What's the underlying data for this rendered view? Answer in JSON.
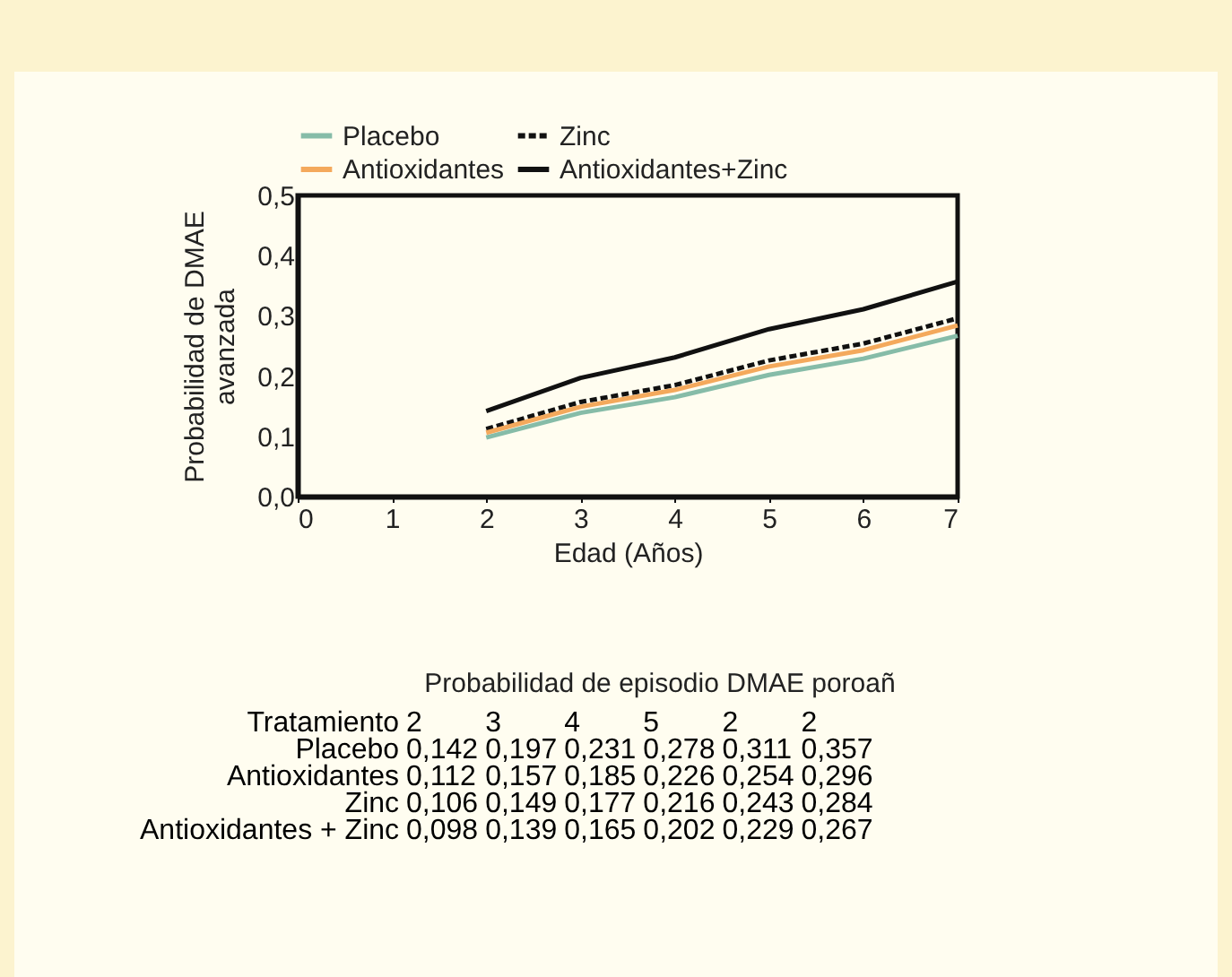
{
  "chart_data": {
    "type": "line",
    "xlabel": "Edad (Años)",
    "ylabel": "Probabilidad de DMAE\navanzada",
    "x": [
      2,
      3,
      4,
      5,
      6,
      7
    ],
    "series": [
      {
        "name": "Placebo",
        "color": "#86bca8",
        "line_style": "solid",
        "values": [
          0.098,
          0.139,
          0.165,
          0.202,
          0.229,
          0.267
        ]
      },
      {
        "name": "Zinc",
        "color": "#111111",
        "line_style": "dashed",
        "values": [
          0.112,
          0.157,
          0.185,
          0.226,
          0.254,
          0.296
        ]
      },
      {
        "name": "Antioxidantes",
        "color": "#f4a95c",
        "line_style": "solid",
        "values": [
          0.106,
          0.149,
          0.177,
          0.216,
          0.243,
          0.284
        ]
      },
      {
        "name": "Antioxidantes+Zinc",
        "color": "#111111",
        "line_style": "solid",
        "values": [
          0.142,
          0.197,
          0.231,
          0.278,
          0.311,
          0.357
        ]
      }
    ],
    "xlim": [
      0,
      7
    ],
    "xticks": [
      0,
      1,
      2,
      3,
      4,
      5,
      6,
      7
    ],
    "ylim": [
      0,
      0.5
    ],
    "yticks": [
      {
        "value": 0,
        "label": "0,0"
      },
      {
        "value": 0.1,
        "label": "0,1"
      },
      {
        "value": 0.2,
        "label": "0,2"
      },
      {
        "value": 0.3,
        "label": "0,3"
      },
      {
        "value": 0.4,
        "label": "0,4"
      },
      {
        "value": 0.5,
        "label": "0,5"
      }
    ],
    "grid": false,
    "legend": "top",
    "marker": "none",
    "annotations": [
      "Probabilidad de episodio DMAE poroañ",
      "Tratamiento 2 3 4 5 2 2",
      "Placebo 0,142 0,197 0,231 0,278 0,311 0,357",
      "Antioxidantes 0,112 0,157 0,185 0,226 0,254 0,296",
      "Zinc 0,106 0,149 0,177 0,216 0,243 0,284",
      "Antioxidantes + Zinc 0,098 0,139 0,165 0,202 0,229 0,267"
    ]
  }
}
